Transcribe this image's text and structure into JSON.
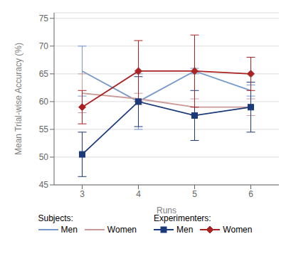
{
  "chart_data": {
    "type": "line",
    "xlabel": "Runs",
    "ylabel": "Mean Trial-wise Accuracy (%)",
    "annotations": [
      "Subjects:",
      "Experimenters:"
    ],
    "x": [
      3,
      4,
      5,
      6
    ],
    "xlim": [
      2.5,
      6.5
    ],
    "xticks": [
      3,
      4,
      5,
      6
    ],
    "ylim": [
      45,
      76
    ],
    "yticks": [
      45,
      50,
      55,
      60,
      65,
      70,
      75
    ],
    "grid": true,
    "series": [
      {
        "name": "Men",
        "color": "#7799CC",
        "marker": "none",
        "values": [
          65.5,
          60.0,
          65.5,
          62.0
        ],
        "yerr": [
          4.5,
          5.0,
          0.5,
          1.0
        ]
      },
      {
        "name": "Women",
        "color": "#CC9999",
        "marker": "none",
        "values": [
          61.5,
          60.5,
          59.0,
          59.0
        ],
        "yerr": [
          3.5,
          1.0,
          1.5,
          1.5
        ]
      },
      {
        "name": "Men",
        "color": "#1A3A7A",
        "marker": "square",
        "values": [
          50.5,
          60.0,
          57.5,
          59.0
        ],
        "yerr": [
          4.0,
          4.5,
          4.5,
          4.5
        ]
      },
      {
        "name": "Women",
        "color": "#AA2222",
        "marker": "diamond",
        "values": [
          59.0,
          65.5,
          65.5,
          65.0
        ],
        "yerr": [
          3.0,
          5.5,
          6.5,
          3.0
        ]
      }
    ]
  }
}
